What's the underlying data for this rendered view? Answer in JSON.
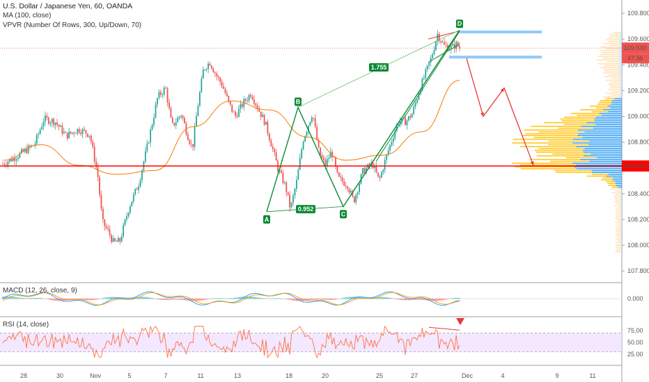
{
  "header": {
    "title": "U.S. Dollar / Japanese Yen, 60, OANDA",
    "indicator_ma": "MA (100, close)",
    "indicator_vpvr": "VPVR (Number Of Rows, 300, Up/Down, 70)",
    "macd_label": "MACD (12, 26, close, 9)",
    "rsi_label": "RSI (14, close)"
  },
  "price_axis": {
    "ticks": [
      "109.800",
      "109.600",
      "109.400",
      "109.200",
      "109.000",
      "108.800",
      "108.600",
      "108.400",
      "108.200",
      "108.000",
      "107.800"
    ],
    "current_price": "109.530",
    "countdown": "47:36",
    "level_label": "108.615"
  },
  "macd_axis": {
    "ticks": [
      "0.000"
    ]
  },
  "rsi_axis": {
    "ticks": [
      "75.00",
      "50.00",
      "25.00"
    ]
  },
  "time_axis": {
    "labels": [
      "28",
      "30",
      "Nov",
      "5",
      "7",
      "11",
      "13",
      "18",
      "20",
      "25",
      "27",
      "Dec",
      "4",
      "9",
      "11"
    ]
  },
  "pattern": {
    "points": [
      "A",
      "B",
      "C",
      "D"
    ],
    "ratio_ac": "0.952",
    "ratio_bd": "1.755"
  },
  "colors": {
    "up": "#26a69a",
    "down": "#ef5350",
    "pattern": "#0b8a34",
    "ma": "#f57c00",
    "level_line": "#ff0000",
    "vp_up": "#2196f3",
    "vp_down": "#ffc107",
    "rsi_line": "#ff7043",
    "rsi_band": "#e9d5ff"
  },
  "chart_data": {
    "type": "candlestick",
    "title": "U.S. Dollar / Japanese Yen, 60, OANDA",
    "xlabel": "",
    "ylabel": "",
    "ylim": [
      107.72,
      109.86
    ],
    "series": [
      {
        "name": "MA (100, close)",
        "values": [
          108.66,
          108.78,
          108.62,
          108.55,
          108.58,
          108.92,
          109.12,
          109.05,
          108.84,
          108.66,
          108.7,
          108.88,
          109.28
        ]
      }
    ],
    "key_points": [
      {
        "label": "A",
        "value": 108.26
      },
      {
        "label": "B",
        "value": 109.07
      },
      {
        "label": "C",
        "value": 108.3
      },
      {
        "label": "D",
        "value": 109.67
      }
    ],
    "horizontal_level": 108.615,
    "last_price": 109.53,
    "macd_ylim": [
      -0.1,
      0.1
    ],
    "rsi_ylim": [
      0,
      100
    ]
  }
}
